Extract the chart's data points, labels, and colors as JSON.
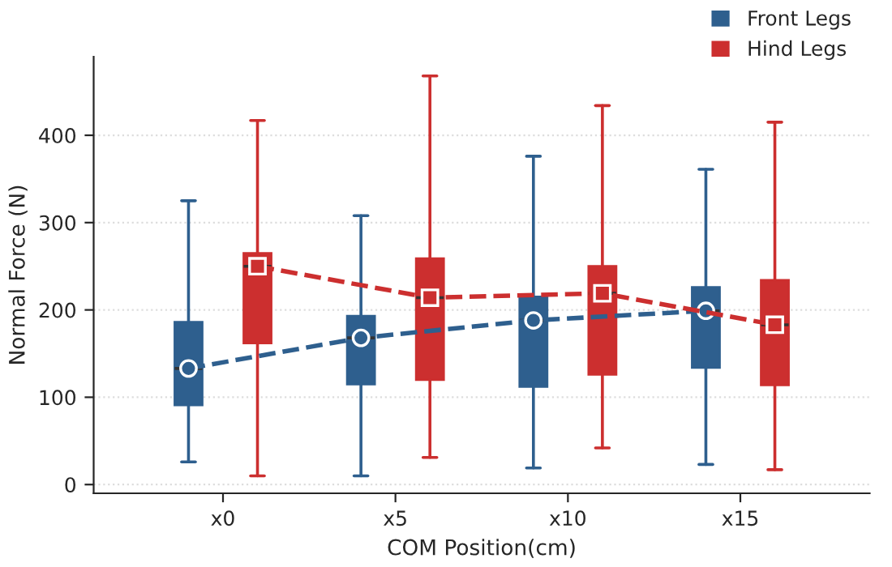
{
  "chart_data": {
    "type": "box",
    "xlabel": "COM Position(cm)",
    "ylabel": "Normal Force (N)",
    "categories": [
      "x0",
      "x5",
      "x10",
      "x15"
    ],
    "ylim": [
      -10,
      490
    ],
    "yticks": [
      0,
      100,
      200,
      300,
      400
    ],
    "grid": "y",
    "legend": "top right",
    "line_style": "dashed",
    "series": [
      {
        "name": "Front Legs",
        "color": "#2e5f8e",
        "boxes": [
          {
            "low": 26,
            "q1": 91,
            "median": 133,
            "q3": 186,
            "high": 325
          },
          {
            "low": 10,
            "q1": 115,
            "median": 168,
            "q3": 193,
            "high": 308
          },
          {
            "low": 19,
            "q1": 112,
            "median": 188,
            "q3": 215,
            "high": 376
          },
          {
            "low": 23,
            "q1": 134,
            "median": 199,
            "q3": 226,
            "high": 361
          }
        ]
      },
      {
        "name": "Hind Legs",
        "color": "#cc2f2f",
        "boxes": [
          {
            "low": 10,
            "q1": 162,
            "median": 250,
            "q3": 265,
            "high": 417
          },
          {
            "low": 31,
            "q1": 120,
            "median": 214,
            "q3": 259,
            "high": 468
          },
          {
            "low": 42,
            "q1": 126,
            "median": 219,
            "q3": 250,
            "high": 434
          },
          {
            "low": 17,
            "q1": 114,
            "median": 183,
            "q3": 234,
            "high": 415
          }
        ]
      },
      {
        "type": "line",
        "color": "#2e5f8e",
        "marker": "circle",
        "values": [
          133,
          168,
          188,
          199
        ]
      },
      {
        "type": "line",
        "color": "#cc2f2f",
        "marker": "square",
        "values": [
          250,
          214,
          219,
          183
        ]
      }
    ]
  }
}
